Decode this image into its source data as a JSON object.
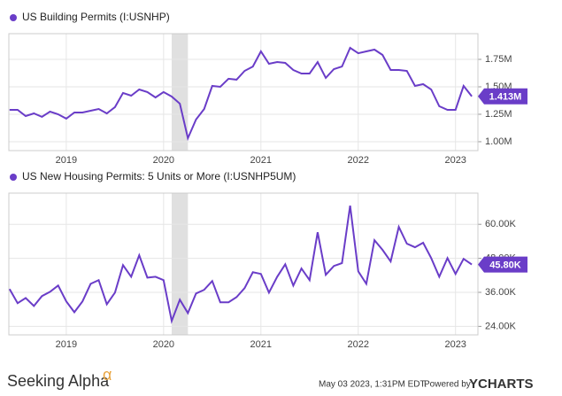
{
  "chart_data": [
    {
      "type": "line",
      "x": [
        2018.417,
        2018.5,
        2018.583,
        2018.667,
        2018.75,
        2018.833,
        2018.917,
        2019,
        2019.083,
        2019.167,
        2019.25,
        2019.333,
        2019.417,
        2019.5,
        2019.583,
        2019.667,
        2019.75,
        2019.833,
        2019.917,
        2020,
        2020.083,
        2020.167,
        2020.25,
        2020.333,
        2020.417,
        2020.5,
        2020.583,
        2020.667,
        2020.75,
        2020.833,
        2020.917,
        2021,
        2021.083,
        2021.167,
        2021.25,
        2021.333,
        2021.417,
        2021.5,
        2021.583,
        2021.667,
        2021.75,
        2021.833,
        2021.917,
        2022,
        2022.083,
        2022.167,
        2022.25,
        2022.333,
        2022.417,
        2022.5,
        2022.583,
        2022.667,
        2022.75,
        2022.833,
        2022.917,
        2023,
        2023.083,
        2023.167
      ],
      "series": [
        {
          "name": "US Building Permits (I:USNHP)",
          "color": "#6a3dc8",
          "values": [
            1290000,
            1290000,
            1234000,
            1258000,
            1226000,
            1274000,
            1250000,
            1210000,
            1266000,
            1266000,
            1282000,
            1298000,
            1258000,
            1315000,
            1444000,
            1419000,
            1476000,
            1452000,
            1403000,
            1452000,
            1411000,
            1347000,
            1032000,
            1202000,
            1298000,
            1508000,
            1500000,
            1573000,
            1565000,
            1645000,
            1685000,
            1823000,
            1710000,
            1726000,
            1718000,
            1653000,
            1621000,
            1621000,
            1726000,
            1581000,
            1661000,
            1685000,
            1855000,
            1806000,
            1823000,
            1839000,
            1790000,
            1653000,
            1653000,
            1645000,
            1508000,
            1524000,
            1476000,
            1323000,
            1290000,
            1290000,
            1508000,
            1413000
          ]
        }
      ],
      "end_label": "1.413M",
      "xlim": [
        2018.41,
        2023.23
      ],
      "xticks": [
        2019,
        2020,
        2021,
        2022,
        2023
      ],
      "ylim": [
        919000,
        1984000
      ],
      "yticks": [
        {
          "value": 1000000,
          "label": "1.00M"
        },
        {
          "value": 1250000,
          "label": "1.25M"
        },
        {
          "value": 1500000,
          "label": "1.50M"
        },
        {
          "value": 1750000,
          "label": "1.75M"
        }
      ],
      "grid": true,
      "shaded_range": [
        2020.083,
        2020.25
      ]
    },
    {
      "type": "line",
      "x": [
        2018.417,
        2018.5,
        2018.583,
        2018.667,
        2018.75,
        2018.833,
        2018.917,
        2019,
        2019.083,
        2019.167,
        2019.25,
        2019.333,
        2019.417,
        2019.5,
        2019.583,
        2019.667,
        2019.75,
        2019.833,
        2019.917,
        2020,
        2020.083,
        2020.167,
        2020.25,
        2020.333,
        2020.417,
        2020.5,
        2020.583,
        2020.667,
        2020.75,
        2020.833,
        2020.917,
        2021,
        2021.083,
        2021.167,
        2021.25,
        2021.333,
        2021.417,
        2021.5,
        2021.583,
        2021.667,
        2021.75,
        2021.833,
        2021.917,
        2022,
        2022.083,
        2022.167,
        2022.25,
        2022.333,
        2022.417,
        2022.5,
        2022.583,
        2022.667,
        2022.75,
        2022.833,
        2022.917,
        2023,
        2023.083,
        2023.167
      ],
      "series": [
        {
          "name": "US New Housing Permits: 5 Units or More (I:USNHP5UM)",
          "color": "#6a3dc8",
          "values": [
            37200,
            32200,
            34000,
            31200,
            34700,
            36200,
            38400,
            32800,
            29000,
            32800,
            39000,
            40300,
            31800,
            35900,
            45600,
            41500,
            49100,
            41200,
            41500,
            40300,
            25900,
            33400,
            28700,
            35600,
            36900,
            40000,
            32500,
            32500,
            34300,
            37500,
            43100,
            42500,
            35900,
            41500,
            45900,
            38400,
            44400,
            40300,
            57200,
            42200,
            45300,
            46300,
            66600,
            43400,
            39000,
            54400,
            51000,
            46900,
            59100,
            53200,
            51900,
            53500,
            48100,
            41500,
            48100,
            42500,
            47800,
            45800
          ]
        }
      ],
      "end_label": "45.80K",
      "xlim": [
        2018.41,
        2023.23
      ],
      "xticks": [
        2019,
        2020,
        2021,
        2022,
        2023
      ],
      "ylim": [
        21000,
        71000
      ],
      "yticks": [
        {
          "value": 24000,
          "label": "24.00K"
        },
        {
          "value": 36000,
          "label": "36.00K"
        },
        {
          "value": 48000,
          "label": "48.00K"
        },
        {
          "value": 60000,
          "label": "60.00K"
        }
      ],
      "grid": true,
      "shaded_range": [
        2020.083,
        2020.25
      ]
    }
  ],
  "footer": {
    "brand": "Seeking Alpha",
    "brand_mark": "α",
    "timestamp": "May 03 2023, 1:31PM EDT.",
    "powered": "Powered by",
    "provider": "YCHARTS"
  }
}
